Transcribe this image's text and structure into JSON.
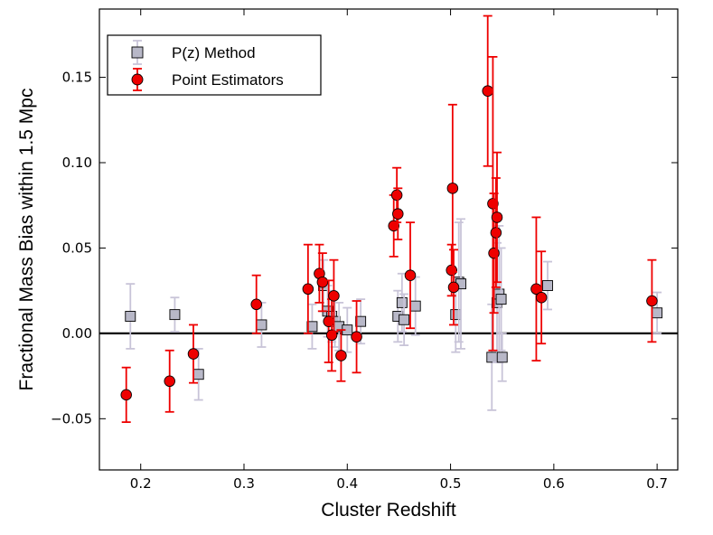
{
  "chart_data": {
    "type": "scatter",
    "title": "",
    "xlabel": "Cluster Redshift",
    "ylabel": "Fractional Mass Bias within 1.5 Mpc",
    "xlim": [
      0.16,
      0.72
    ],
    "ylim": [
      -0.08,
      0.19
    ],
    "xticks": [
      0.2,
      0.3,
      0.4,
      0.5,
      0.6,
      0.7
    ],
    "yticks": [
      -0.05,
      0.0,
      0.05,
      0.1,
      0.15
    ],
    "xtick_labels": [
      "0.2",
      "0.3",
      "0.4",
      "0.5",
      "0.6",
      "0.7"
    ],
    "ytick_labels": [
      "−0.05",
      "0.00",
      "0.05",
      "0.10",
      "0.15"
    ],
    "reference_line_y": 0.0,
    "legend": {
      "position": "top-left",
      "entries": [
        "P(z) Method",
        "Point Estimators"
      ]
    },
    "series": [
      {
        "name": "P(z) Method",
        "marker": "square",
        "color": "#b8b8c8",
        "errorbar_color": "#c8c4d8",
        "points": [
          {
            "x": 0.19,
            "y": 0.01,
            "err": 0.019
          },
          {
            "x": 0.233,
            "y": 0.011,
            "err": 0.01
          },
          {
            "x": 0.256,
            "y": -0.024,
            "err": 0.015
          },
          {
            "x": 0.317,
            "y": 0.005,
            "err": 0.013
          },
          {
            "x": 0.366,
            "y": 0.004,
            "err": 0.013
          },
          {
            "x": 0.377,
            "y": 0.028,
            "err": 0.015
          },
          {
            "x": 0.381,
            "y": 0.013,
            "err": 0.015
          },
          {
            "x": 0.385,
            "y": 0.01,
            "err": 0.015
          },
          {
            "x": 0.388,
            "y": 0.007,
            "err": 0.015
          },
          {
            "x": 0.392,
            "y": 0.004,
            "err": 0.014
          },
          {
            "x": 0.4,
            "y": 0.002,
            "err": 0.013
          },
          {
            "x": 0.413,
            "y": 0.007,
            "err": 0.013
          },
          {
            "x": 0.449,
            "y": 0.01,
            "err": 0.015
          },
          {
            "x": 0.453,
            "y": 0.018,
            "err": 0.017
          },
          {
            "x": 0.455,
            "y": 0.008,
            "err": 0.015
          },
          {
            "x": 0.466,
            "y": 0.016,
            "err": 0.017
          },
          {
            "x": 0.505,
            "y": 0.011,
            "err": 0.022
          },
          {
            "x": 0.508,
            "y": 0.03,
            "err": 0.035
          },
          {
            "x": 0.51,
            "y": 0.029,
            "err": 0.038
          },
          {
            "x": 0.54,
            "y": -0.014,
            "err": 0.031
          },
          {
            "x": 0.545,
            "y": 0.018,
            "err": 0.035
          },
          {
            "x": 0.547,
            "y": 0.023,
            "err": 0.04
          },
          {
            "x": 0.549,
            "y": 0.02,
            "err": 0.03
          },
          {
            "x": 0.55,
            "y": -0.014,
            "err": 0.014
          },
          {
            "x": 0.594,
            "y": 0.028,
            "err": 0.014
          },
          {
            "x": 0.7,
            "y": 0.012,
            "err": 0.012
          }
        ]
      },
      {
        "name": "Point Estimators",
        "marker": "circle",
        "color": "#ee0000",
        "errorbar_color": "#ee0000",
        "points": [
          {
            "x": 0.186,
            "y": -0.036,
            "err": 0.016
          },
          {
            "x": 0.228,
            "y": -0.028,
            "err": 0.018
          },
          {
            "x": 0.251,
            "y": -0.012,
            "err": 0.017
          },
          {
            "x": 0.312,
            "y": 0.017,
            "err": 0.017
          },
          {
            "x": 0.362,
            "y": 0.026,
            "err": 0.026
          },
          {
            "x": 0.373,
            "y": 0.035,
            "err": 0.017
          },
          {
            "x": 0.376,
            "y": 0.03,
            "err": 0.017
          },
          {
            "x": 0.382,
            "y": 0.007,
            "err": 0.024
          },
          {
            "x": 0.385,
            "y": -0.001,
            "err": 0.021
          },
          {
            "x": 0.387,
            "y": 0.022,
            "err": 0.021
          },
          {
            "x": 0.394,
            "y": -0.013,
            "err": 0.015
          },
          {
            "x": 0.409,
            "y": -0.002,
            "err": 0.021
          },
          {
            "x": 0.445,
            "y": 0.063,
            "err": 0.018
          },
          {
            "x": 0.448,
            "y": 0.081,
            "err": 0.016
          },
          {
            "x": 0.449,
            "y": 0.07,
            "err": 0.015
          },
          {
            "x": 0.461,
            "y": 0.034,
            "err": 0.031
          },
          {
            "x": 0.501,
            "y": 0.037,
            "err": 0.015
          },
          {
            "x": 0.502,
            "y": 0.085,
            "err": 0.049
          },
          {
            "x": 0.503,
            "y": 0.027,
            "err": 0.022
          },
          {
            "x": 0.536,
            "y": 0.142,
            "err": 0.044
          },
          {
            "x": 0.541,
            "y": 0.076,
            "err": 0.086
          },
          {
            "x": 0.542,
            "y": 0.047,
            "err": 0.035
          },
          {
            "x": 0.544,
            "y": 0.059,
            "err": 0.032
          },
          {
            "x": 0.545,
            "y": 0.068,
            "err": 0.038
          },
          {
            "x": 0.583,
            "y": 0.026,
            "err": 0.042
          },
          {
            "x": 0.588,
            "y": 0.021,
            "err": 0.027
          },
          {
            "x": 0.695,
            "y": 0.019,
            "err": 0.024
          }
        ]
      }
    ]
  }
}
